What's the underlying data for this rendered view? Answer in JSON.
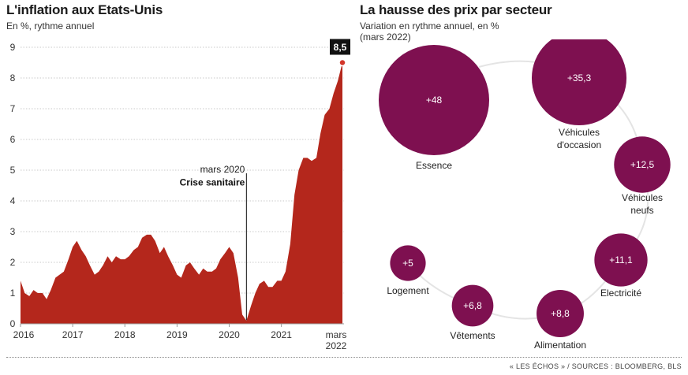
{
  "source": "« LES ÉCHOS » / SOURCES : BLOOMBERG, BLS",
  "chart_data": [
    {
      "type": "area",
      "title": "L'inflation aux Etats-Unis",
      "subtitle": "En %, rythme annuel",
      "color": "#b4271c",
      "ylim": [
        0,
        9
      ],
      "yticks": [
        "0",
        "1",
        "2",
        "3",
        "4",
        "5",
        "6",
        "7",
        "8",
        "9"
      ],
      "xticks": [
        "2016",
        "2017",
        "2018",
        "2019",
        "2020",
        "2021",
        "mars",
        "2022"
      ],
      "x": [
        2016.0,
        2016.08,
        2016.17,
        2016.25,
        2016.33,
        2016.42,
        2016.5,
        2016.58,
        2016.67,
        2016.75,
        2016.83,
        2016.92,
        2017.0,
        2017.08,
        2017.17,
        2017.25,
        2017.33,
        2017.42,
        2017.5,
        2017.58,
        2017.67,
        2017.75,
        2017.83,
        2017.92,
        2018.0,
        2018.08,
        2018.17,
        2018.25,
        2018.33,
        2018.42,
        2018.5,
        2018.58,
        2018.67,
        2018.75,
        2018.83,
        2018.92,
        2019.0,
        2019.08,
        2019.17,
        2019.25,
        2019.33,
        2019.42,
        2019.5,
        2019.58,
        2019.67,
        2019.75,
        2019.83,
        2019.92,
        2020.0,
        2020.08,
        2020.17,
        2020.25,
        2020.33,
        2020.42,
        2020.5,
        2020.58,
        2020.67,
        2020.75,
        2020.83,
        2020.92,
        2021.0,
        2021.08,
        2021.17,
        2021.25,
        2021.33,
        2021.42,
        2021.5,
        2021.58,
        2021.67,
        2021.75,
        2021.83,
        2021.92,
        2022.0,
        2022.08,
        2022.17
      ],
      "values": [
        1.4,
        1.0,
        0.9,
        1.1,
        1.0,
        1.0,
        0.8,
        1.1,
        1.5,
        1.6,
        1.7,
        2.1,
        2.5,
        2.7,
        2.4,
        2.2,
        1.9,
        1.6,
        1.7,
        1.9,
        2.2,
        2.0,
        2.2,
        2.1,
        2.1,
        2.2,
        2.4,
        2.5,
        2.8,
        2.9,
        2.9,
        2.7,
        2.3,
        2.5,
        2.2,
        1.9,
        1.6,
        1.5,
        1.9,
        2.0,
        1.8,
        1.6,
        1.8,
        1.7,
        1.7,
        1.8,
        2.1,
        2.3,
        2.5,
        2.3,
        1.5,
        0.3,
        0.1,
        0.6,
        1.0,
        1.3,
        1.4,
        1.2,
        1.2,
        1.4,
        1.4,
        1.7,
        2.6,
        4.2,
        5.0,
        5.4,
        5.4,
        5.3,
        5.4,
        6.2,
        6.8,
        7.0,
        7.5,
        7.9,
        8.5
      ],
      "last_value_label": "8,5",
      "annotation": {
        "x": 2020.33,
        "line1": "mars 2020",
        "line2": "Crise sanitaire"
      }
    },
    {
      "type": "bubble",
      "title": "La hausse des prix par secteur",
      "subtitle_line1": "Variation en rythme annuel, en %",
      "subtitle_line2": "(mars 2022)",
      "color": "#7e1050",
      "items": [
        {
          "name": "Essence",
          "value_label": "+48",
          "value": 48
        },
        {
          "name_lines": [
            "Véhicules",
            "d'occasion"
          ],
          "value_label": "+35,3",
          "value": 35.3
        },
        {
          "name_lines": [
            "Véhicules",
            "neufs"
          ],
          "value_label": "+12,5",
          "value": 12.5
        },
        {
          "name": "Electricité",
          "value_label": "+11,1",
          "value": 11.1
        },
        {
          "name": "Alimentation",
          "value_label": "+8,8",
          "value": 8.8
        },
        {
          "name": "Vêtements",
          "value_label": "+6,8",
          "value": 6.8
        },
        {
          "name": "Logement",
          "value_label": "+5",
          "value": 5
        }
      ]
    }
  ]
}
